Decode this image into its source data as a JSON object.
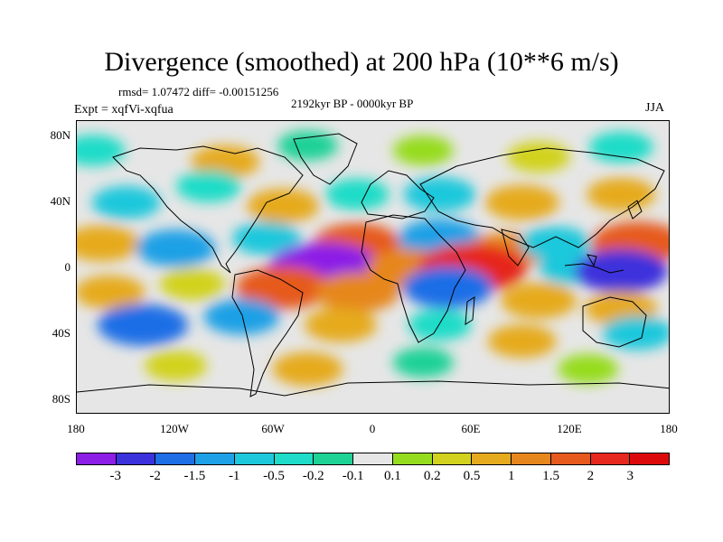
{
  "title": "Divergence (smoothed) at 200 hPa (10**6 m/s)",
  "stats": "rmsd= 1.07472 diff= -0.00151256",
  "period": "2192kyr BP - 0000kyr BP",
  "experiment": "Expt = xqfVi-xqfua",
  "season": "JJA",
  "map": {
    "lat_ticks": [
      "80N",
      "40N",
      "0",
      "40S",
      "80S"
    ],
    "lon_ticks": [
      "180",
      "120W",
      "60W",
      "0",
      "60E",
      "120E",
      "180"
    ]
  },
  "colorbar": {
    "colors": [
      "#8c1ee6",
      "#3c32dc",
      "#1e6ee6",
      "#1ea0e6",
      "#1ec8dc",
      "#1edcc8",
      "#1ed296",
      "#e6e6e6",
      "#96dc1e",
      "#d2d21e",
      "#e6aa1e",
      "#e6871e",
      "#e65a1e",
      "#e6281e",
      "#dc0a0a"
    ],
    "labels": [
      "-3",
      "-2",
      "-1.5",
      "-1",
      "-0.5",
      "-0.2",
      "-0.1",
      "0.1",
      "0.2",
      "0.5",
      "1",
      "1.5",
      "2",
      "3"
    ]
  },
  "field_blobs": [
    {
      "lon": -170,
      "lat": 72,
      "level": -0.3
    },
    {
      "lon": -90,
      "lat": 65,
      "level": 0.6
    },
    {
      "lon": -40,
      "lat": 75,
      "level": -0.15
    },
    {
      "lon": 30,
      "lat": 72,
      "level": 0.15
    },
    {
      "lon": 100,
      "lat": 68,
      "level": 0.3
    },
    {
      "lon": 150,
      "lat": 74,
      "level": -0.35
    },
    {
      "lon": -150,
      "lat": 40,
      "level": -0.6
    },
    {
      "lon": -100,
      "lat": 50,
      "level": -0.4
    },
    {
      "lon": -55,
      "lat": 38,
      "level": 0.8
    },
    {
      "lon": -10,
      "lat": 45,
      "level": -0.35
    },
    {
      "lon": 40,
      "lat": 45,
      "level": -0.8
    },
    {
      "lon": 90,
      "lat": 40,
      "level": 0.9
    },
    {
      "lon": 150,
      "lat": 45,
      "level": 0.6
    },
    {
      "lon": -165,
      "lat": 15,
      "level": 1.0
    },
    {
      "lon": -120,
      "lat": 12,
      "level": -1.2
    },
    {
      "lon": -65,
      "lat": 18,
      "level": -0.6
    },
    {
      "lon": -10,
      "lat": 15,
      "level": 1.6
    },
    {
      "lon": 40,
      "lat": 18,
      "level": -1.4
    },
    {
      "lon": 80,
      "lat": 10,
      "level": 1.2
    },
    {
      "lon": 110,
      "lat": 15,
      "level": -0.7
    },
    {
      "lon": 160,
      "lat": 15,
      "level": 2.0
    },
    {
      "lon": -30,
      "lat": 0,
      "level": -3.2
    },
    {
      "lon": 20,
      "lat": 0,
      "level": 1.2
    },
    {
      "lon": 60,
      "lat": 0,
      "level": 2.8
    },
    {
      "lon": 120,
      "lat": 0,
      "level": -0.5
    },
    {
      "lon": 150,
      "lat": -2,
      "level": -2.0
    },
    {
      "lon": -160,
      "lat": -15,
      "level": 0.7
    },
    {
      "lon": -110,
      "lat": -10,
      "level": 0.4
    },
    {
      "lon": -55,
      "lat": -12,
      "level": 2.0
    },
    {
      "lon": -10,
      "lat": -15,
      "level": 1.5
    },
    {
      "lon": 45,
      "lat": -12,
      "level": -1.8
    },
    {
      "lon": 100,
      "lat": -20,
      "level": 1.0
    },
    {
      "lon": 150,
      "lat": -25,
      "level": 0.8
    },
    {
      "lon": -140,
      "lat": -35,
      "level": -1.8
    },
    {
      "lon": -80,
      "lat": -30,
      "level": -1.0
    },
    {
      "lon": -20,
      "lat": -35,
      "level": 0.8
    },
    {
      "lon": 40,
      "lat": -35,
      "level": -0.3
    },
    {
      "lon": 90,
      "lat": -45,
      "level": 0.6
    },
    {
      "lon": 160,
      "lat": -40,
      "level": -0.7
    },
    {
      "lon": -120,
      "lat": -60,
      "level": 0.25
    },
    {
      "lon": -40,
      "lat": -62,
      "level": 0.7
    },
    {
      "lon": 30,
      "lat": -58,
      "level": -0.15
    },
    {
      "lon": 130,
      "lat": -62,
      "level": 0.15
    }
  ]
}
